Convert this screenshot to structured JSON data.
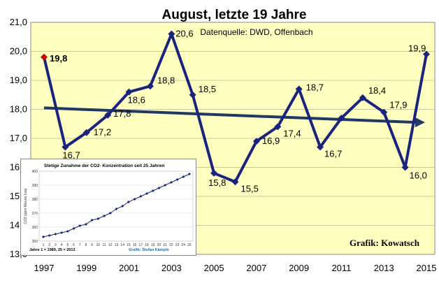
{
  "chart_data": [
    {
      "type": "line",
      "title": "August, letzte 19 Jahre",
      "subtitle": "Datenquelle: DWD, Offenbach",
      "credit": "Grafik: Kowatsch",
      "x": [
        1997,
        1998,
        1999,
        2000,
        2001,
        2002,
        2003,
        2004,
        2005,
        2006,
        2007,
        2008,
        2009,
        2010,
        2011,
        2012,
        2013,
        2014,
        2015
      ],
      "values": [
        19.8,
        16.7,
        17.2,
        17.8,
        18.6,
        18.8,
        20.6,
        18.5,
        15.8,
        15.5,
        16.9,
        17.4,
        18.7,
        16.7,
        17.7,
        18.4,
        17.9,
        16.0,
        19.9
      ],
      "labels": [
        "19,8",
        "16,7",
        "17,2",
        "17,8",
        "18,6",
        "18,8",
        "20,6",
        "18,5",
        "15,8",
        "15,5",
        "16,9",
        "17,4",
        "18,7",
        "16,7",
        "",
        "18,4",
        "17,9",
        "16,0",
        "19,9"
      ],
      "xticks": [
        "1997",
        "1999",
        "2001",
        "2003",
        "2005",
        "2007",
        "2009",
        "2011",
        "2013",
        "2015"
      ],
      "xtick_values": [
        1997,
        1999,
        2001,
        2003,
        2005,
        2007,
        2009,
        2011,
        2013,
        2015
      ],
      "yticks": [
        "13,0",
        "14,0",
        "15,0",
        "16,0",
        "17,0",
        "18,0",
        "19,0",
        "20,0",
        "21,0"
      ],
      "ylim": [
        13,
        21
      ],
      "trend": {
        "start": 18.05,
        "end": 17.55
      },
      "colors": {
        "background": "#ffffc0",
        "line": "#1a237e",
        "highlight": "#cc0000",
        "trend": "#1f3864",
        "grid": "#c8c8a0"
      }
    },
    {
      "type": "line",
      "title": "Stetige Zunahme der CO2- Konzentration seit 25 Jahren",
      "ylabel": "CO2 (ppm Mauna Loa)",
      "footnote": "Jahre 1 = 1989, 25 = 2013",
      "credit": "Grafik: Stefan Kämpfe",
      "x": [
        1,
        2,
        3,
        4,
        5,
        6,
        7,
        8,
        9,
        10,
        11,
        12,
        13,
        14,
        15,
        16,
        17,
        18,
        19,
        20,
        21,
        22,
        23,
        24,
        25
      ],
      "values": [
        353,
        354,
        355,
        356,
        357,
        359,
        361,
        362,
        365,
        366,
        368,
        370,
        373,
        375,
        378,
        380,
        382,
        384,
        386,
        388,
        390,
        392,
        394,
        396,
        398
      ],
      "xticks": [
        "1",
        "2",
        "3",
        "4",
        "5",
        "6",
        "7",
        "8",
        "9",
        "10",
        "11",
        "12",
        "13",
        "14",
        "15",
        "16",
        "17",
        "18",
        "19",
        "20",
        "21",
        "22",
        "23",
        "24",
        "25"
      ],
      "yticks": [
        "350",
        "360",
        "370",
        "380",
        "390",
        "400"
      ],
      "ylim": [
        350,
        400
      ]
    }
  ]
}
